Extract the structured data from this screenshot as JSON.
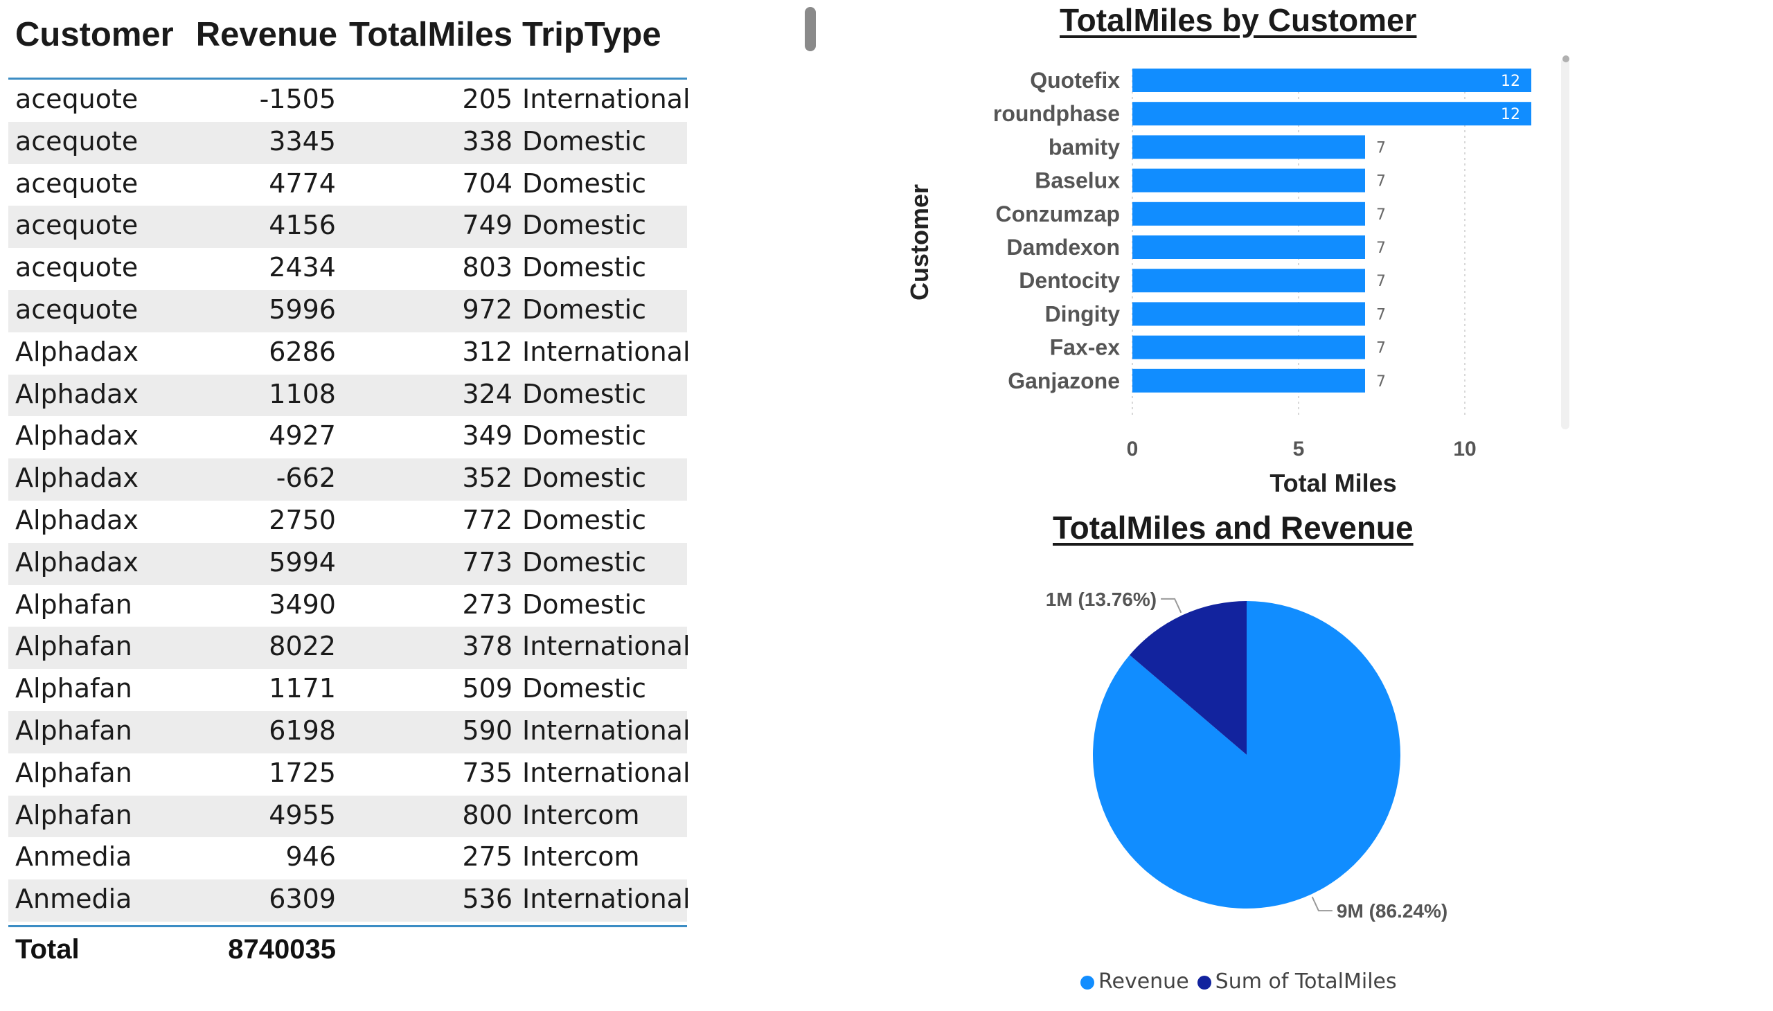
{
  "table": {
    "headers": [
      "Customer",
      "Revenue",
      "TotalMiles",
      "TripType"
    ],
    "rows": [
      [
        "acequote",
        "-1505",
        "205",
        "International"
      ],
      [
        "acequote",
        "3345",
        "338",
        "Domestic"
      ],
      [
        "acequote",
        "4774",
        "704",
        "Domestic"
      ],
      [
        "acequote",
        "4156",
        "749",
        "Domestic"
      ],
      [
        "acequote",
        "2434",
        "803",
        "Domestic"
      ],
      [
        "acequote",
        "5996",
        "972",
        "Domestic"
      ],
      [
        "Alphadax",
        "6286",
        "312",
        "International"
      ],
      [
        "Alphadax",
        "1108",
        "324",
        "Domestic"
      ],
      [
        "Alphadax",
        "4927",
        "349",
        "Domestic"
      ],
      [
        "Alphadax",
        "-662",
        "352",
        "Domestic"
      ],
      [
        "Alphadax",
        "2750",
        "772",
        "Domestic"
      ],
      [
        "Alphadax",
        "5994",
        "773",
        "Domestic"
      ],
      [
        "Alphafan",
        "3490",
        "273",
        "Domestic"
      ],
      [
        "Alphafan",
        "8022",
        "378",
        "International"
      ],
      [
        "Alphafan",
        "1171",
        "509",
        "Domestic"
      ],
      [
        "Alphafan",
        "6198",
        "590",
        "International"
      ],
      [
        "Alphafan",
        "1725",
        "735",
        "International"
      ],
      [
        "Alphafan",
        "4955",
        "800",
        "Intercom"
      ],
      [
        "Anmedia",
        "946",
        "275",
        "Intercom"
      ],
      [
        "Anmedia",
        "6309",
        "536",
        "International"
      ]
    ],
    "total_label": "Total",
    "total_revenue": "8740035"
  },
  "chart_data": [
    {
      "type": "bar",
      "orientation": "horizontal",
      "title": "TotalMiles by Customer",
      "xlabel": "Total Miles",
      "ylabel": "Customer",
      "categories": [
        "Quotefix",
        "roundphase",
        "bamity",
        "Baselux",
        "Conzumzap",
        "Damdexon",
        "Dentocity",
        "Dingity",
        "Fax-ex",
        "Ganjazone"
      ],
      "values": [
        12,
        12,
        7,
        7,
        7,
        7,
        7,
        7,
        7,
        7
      ],
      "xlim": [
        0,
        12
      ],
      "xticks": [
        0,
        5,
        10
      ],
      "grid": true,
      "data_labels": true,
      "color": "#118dff"
    },
    {
      "type": "pie",
      "title": "TotalMiles and Revenue",
      "slices": [
        {
          "name": "Revenue",
          "value": 86.24,
          "label": "9M (86.24%)",
          "color": "#118dff"
        },
        {
          "name": "Sum of TotalMiles",
          "value": 13.76,
          "label": "1M (13.76%)",
          "color": "#12239e"
        }
      ],
      "legend": "bottom-center"
    }
  ]
}
